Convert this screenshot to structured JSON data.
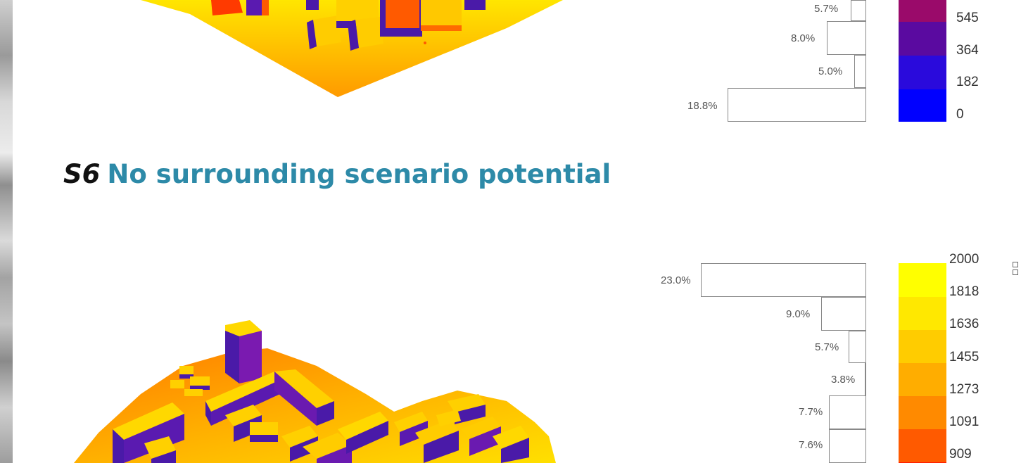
{
  "heading": {
    "code": "S6",
    "title": "No surrounding scenario potential"
  },
  "top_panel": {
    "histogram": [
      {
        "label": "5.7%",
        "value": 5.7
      },
      {
        "label": "8.0%",
        "value": 8.0
      },
      {
        "label": "5.0%",
        "value": 5.0
      },
      {
        "label": "18.8%",
        "value": 18.8
      }
    ],
    "legend": [
      {
        "label": "545",
        "color": "#9a0a6a"
      },
      {
        "label": "364",
        "color": "#5a0aa0"
      },
      {
        "label": "182",
        "color": "#2a0adc"
      },
      {
        "label": "0",
        "color": "#0000ff"
      }
    ]
  },
  "bottom_panel": {
    "histogram": [
      {
        "label": "23.0%",
        "value": 23.0
      },
      {
        "label": "9.0%",
        "value": 9.0
      },
      {
        "label": "5.7%",
        "value": 5.7
      },
      {
        "label": "3.8%",
        "value": 3.8
      },
      {
        "label": "7.7%",
        "value": 7.7
      },
      {
        "label": "7.6%",
        "value": 7.6
      }
    ],
    "legend": [
      {
        "label": "2000",
        "color": "#ffff00"
      },
      {
        "label": "1818",
        "color": "#ffe800"
      },
      {
        "label": "1636",
        "color": "#ffcc00"
      },
      {
        "label": "1455",
        "color": "#ffad00"
      },
      {
        "label": "1273",
        "color": "#ff8a00"
      },
      {
        "label": "1091",
        "color": "#ff5a00"
      },
      {
        "label": "909",
        "color": "#ff1a00"
      }
    ]
  },
  "colors": {
    "heading_title": "#2d8aa8",
    "building_side": "#4a1aa8",
    "ground_hot": "#ff8a00",
    "ground_warm": "#ffd400"
  }
}
